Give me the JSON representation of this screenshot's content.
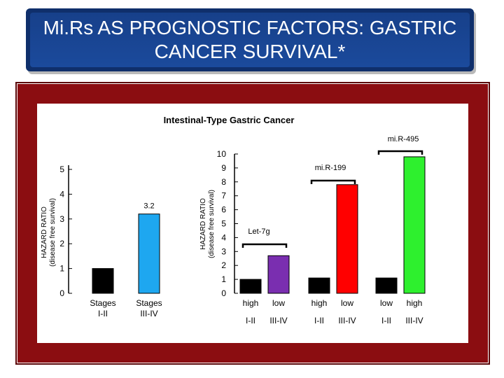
{
  "slide": {
    "title": "Mi.Rs AS PROGNOSTIC FACTORS: GASTRIC CANCER SURVIVAL*",
    "colors": {
      "title_bg": "#0f2f6b",
      "frame": "#8b0d11"
    }
  },
  "chart_data": [
    {
      "type": "bar",
      "title": "Intestinal-Type Gastric Cancer",
      "ylabel": "HAZARD RATIO (disease free survival)",
      "ylim": [
        0,
        5
      ],
      "yticks": [
        0,
        1,
        2,
        3,
        4,
        5
      ],
      "categories": [
        "Stages I-II",
        "Stages III-IV"
      ],
      "category_lines": [
        [
          "Stages",
          "I-II"
        ],
        [
          "Stages",
          "III-IV"
        ]
      ],
      "values": [
        1,
        3.2
      ],
      "colors": [
        "#000000",
        "#1ea7f0"
      ],
      "data_labels": [
        null,
        "3.2"
      ]
    },
    {
      "type": "bar",
      "ylabel": "HAZARD RATIO (disease free survival)",
      "ylim": [
        0,
        10
      ],
      "yticks": [
        0,
        1,
        2,
        3,
        4,
        5,
        6,
        7,
        8,
        9,
        10
      ],
      "groups": [
        {
          "name": "Let-7g",
          "bars": [
            {
              "level": "high",
              "stage": "I-II",
              "value": 1,
              "color": "#000000"
            },
            {
              "level": "low",
              "stage": "III-IV",
              "value": 2.7,
              "color": "#7a2eb0"
            }
          ]
        },
        {
          "name": "mi.R-199",
          "bars": [
            {
              "level": "high",
              "stage": "I-II",
              "value": 1.1,
              "color": "#000000"
            },
            {
              "level": "low",
              "stage": "III-IV",
              "value": 7.8,
              "color": "#ff0000"
            }
          ]
        },
        {
          "name": "mi.R-495",
          "bars": [
            {
              "level": "low",
              "stage": "I-II",
              "value": 1.1,
              "color": "#000000"
            },
            {
              "level": "high",
              "stage": "III-IV",
              "value": 9.8,
              "color": "#2ef02e"
            }
          ]
        }
      ]
    }
  ]
}
